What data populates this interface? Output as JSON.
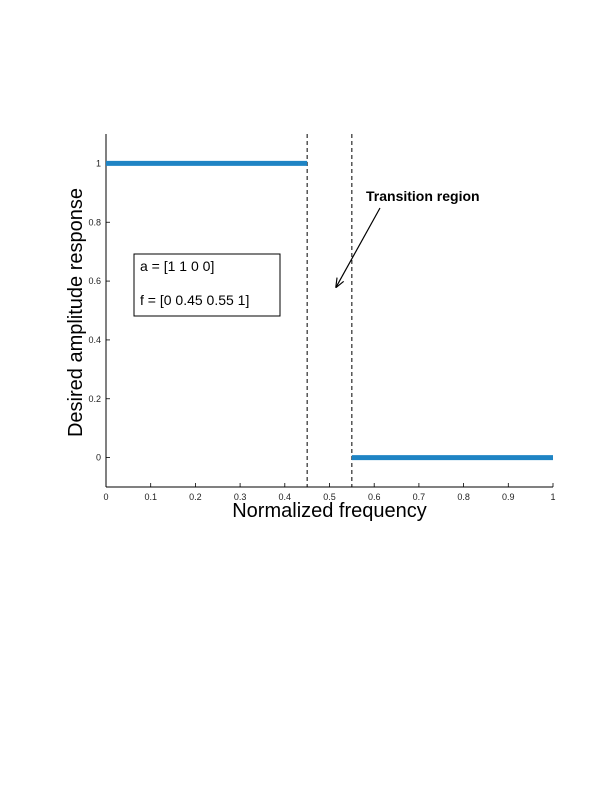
{
  "chart_data": {
    "type": "line",
    "title": "",
    "xlabel": "Normalized frequency",
    "ylabel": "Desired amplitude response",
    "xlim": [
      0,
      1
    ],
    "ylim": [
      -0.1,
      1.1
    ],
    "xticks": [
      0,
      0.1,
      0.2,
      0.3,
      0.4,
      0.5,
      0.6,
      0.7,
      0.8,
      0.9,
      1
    ],
    "xtick_labels": [
      "0",
      "0.1",
      "0.2",
      "0.3",
      "0.4",
      "0.5",
      "0.6",
      "0.7",
      "0.8",
      "0.9",
      "1"
    ],
    "yticks": [
      0,
      0.2,
      0.4,
      0.6,
      0.8,
      1
    ],
    "ytick_labels": [
      "0",
      "0.2",
      "0.4",
      "0.6",
      "0.8",
      "1"
    ],
    "grid": false,
    "series": [
      {
        "x": [
          0,
          0.45
        ],
        "y": [
          1,
          1
        ],
        "color": "#1f84c4"
      },
      {
        "x": [
          0.55,
          1
        ],
        "y": [
          0,
          0
        ],
        "color": "#1f84c4"
      }
    ],
    "vlines": [
      0.45,
      0.55
    ],
    "textbox": {
      "lines": [
        "a = [1 1 0 0]",
        "f = [0 0.45 0.55 1]"
      ]
    },
    "annotations": [
      {
        "text": "Transition region",
        "arrow_to": {
          "x": 0.515,
          "y": 0.58
        }
      }
    ]
  }
}
